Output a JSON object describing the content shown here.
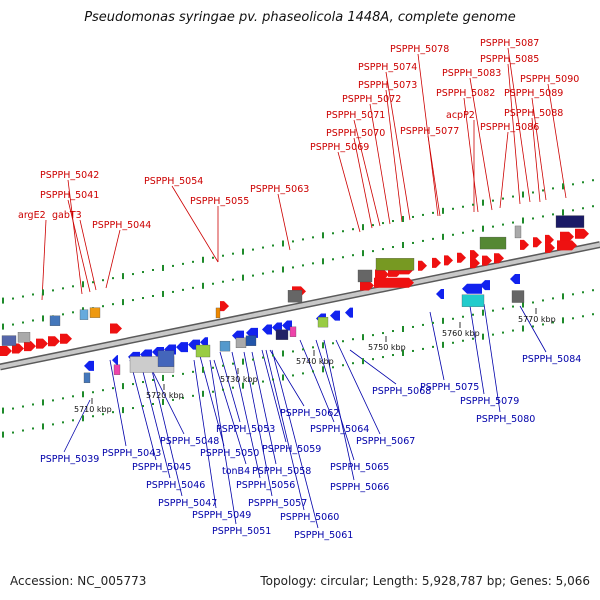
{
  "title": "Pseudomonas syringae pv. phaseolicola 1448A, complete genome",
  "footer": {
    "accession": "Accession: NC_005773",
    "summary": "Topology: circular; Length: 5,928,787 bp; Genes: 5,066"
  },
  "colors": {
    "forward": "#ee1111",
    "reverse": "#1122ee",
    "label_forward": "#cc0000",
    "label_reverse": "#0000aa",
    "backbone": "#9a9a9a"
  },
  "ticks": [
    "5710 kbp",
    "5720 kbp",
    "5730 kbp",
    "5740 kbp",
    "5750 kbp",
    "5760 kbp",
    "5770 kbp"
  ],
  "top_labels": [
    "argE2",
    "PSPPH_5042",
    "PSPPH_5041",
    "gabT3",
    "PSPPH_5044",
    "PSPPH_5054",
    "PSPPH_5055",
    "PSPPH_5063",
    "PSPPH_5069",
    "PSPPH_5070",
    "PSPPH_5071",
    "PSPPH_5072",
    "PSPPH_5073",
    "PSPPH_5074",
    "PSPPH_5078",
    "PSPPH_5077",
    "acpP2",
    "PSPPH_5082",
    "PSPPH_5083",
    "PSPPH_5086",
    "PSPPH_5085",
    "PSPPH_5087",
    "PSPPH_5088",
    "PSPPH_5089",
    "PSPPH_5090"
  ],
  "bottom_labels": [
    "PSPPH_5039",
    "PSPPH_5043",
    "PSPPH_5045",
    "PSPPH_5046",
    "PSPPH_5047",
    "PSPPH_5048",
    "PSPPH_5049",
    "PSPPH_5050",
    "PSPPH_5051",
    "tonB4",
    "PSPPH_5053",
    "PSPPH_5056",
    "PSPPH_5057",
    "PSPPH_5058",
    "PSPPH_5059",
    "PSPPH_5060",
    "PSPPH_5061",
    "PSPPH_5062",
    "PSPPH_5064",
    "PSPPH_5065",
    "PSPPH_5066",
    "PSPPH_5067",
    "PSPPH_5068",
    "PSPPH_5075",
    "PSPPH_5079",
    "PSPPH_5080",
    "PSPPH_5084"
  ]
}
